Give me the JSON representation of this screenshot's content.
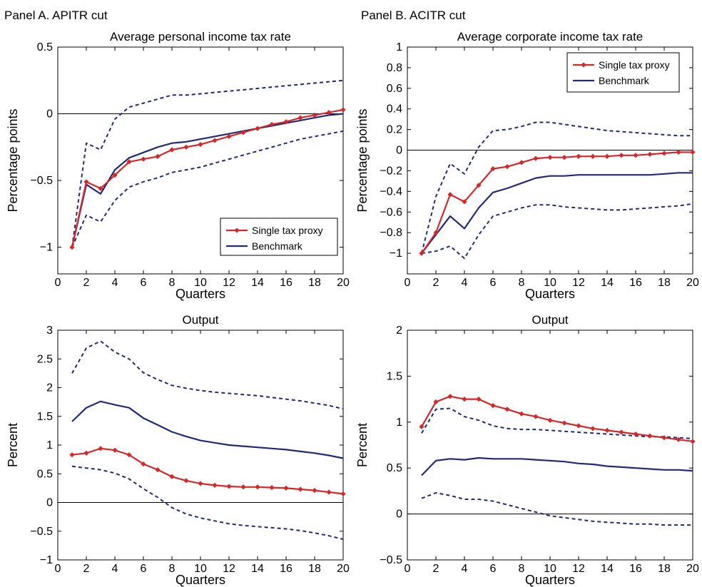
{
  "panels": {
    "left": "Panel A. APITR cut",
    "right": "Panel B. ACITR cut"
  },
  "colors": {
    "proxy": "#d62728",
    "benchmark": "#1f2a7a",
    "band": "#1f2a7a",
    "zero_line": "#000000"
  },
  "chart_data": [
    {
      "type": "line",
      "title": "Average personal income tax rate",
      "xlabel": "Quarters",
      "ylabel": "Percentage points",
      "xlim": [
        0,
        20
      ],
      "ylim": [
        -1.2,
        0.5
      ],
      "xticks": [
        0,
        2,
        4,
        6,
        8,
        10,
        12,
        14,
        16,
        18,
        20
      ],
      "xtick_labels": [
        "0",
        "2",
        "4",
        "6",
        "8",
        "10",
        "12",
        "14",
        "16",
        "18",
        "20"
      ],
      "yticks": [
        -1,
        -0.5,
        0,
        0.5
      ],
      "ytick_labels": [
        "−1",
        "−0.5",
        "0",
        "0.5"
      ],
      "legend_position": "bottom-right",
      "x": [
        1,
        2,
        3,
        4,
        5,
        6,
        7,
        8,
        9,
        10,
        11,
        12,
        13,
        14,
        15,
        16,
        17,
        18,
        19,
        20
      ],
      "series": [
        {
          "name": "Single tax proxy",
          "style": "proxy",
          "values": [
            -1,
            -0.51,
            -0.56,
            -0.46,
            -0.36,
            -0.34,
            -0.32,
            -0.27,
            -0.25,
            -0.23,
            -0.2,
            -0.17,
            -0.14,
            -0.11,
            -0.08,
            -0.06,
            -0.03,
            -0.01,
            0.01,
            0.03
          ]
        },
        {
          "name": "Benchmark",
          "style": "benchmark",
          "values": [
            -1,
            -0.53,
            -0.6,
            -0.42,
            -0.33,
            -0.29,
            -0.25,
            -0.22,
            -0.21,
            -0.19,
            -0.17,
            -0.15,
            -0.13,
            -0.11,
            -0.09,
            -0.07,
            -0.05,
            -0.03,
            -0.01,
            0
          ]
        },
        {
          "style": "band",
          "values": [
            -1,
            -0.22,
            -0.27,
            -0.04,
            0.05,
            0.08,
            0.11,
            0.14,
            0.14,
            0.15,
            0.16,
            0.17,
            0.18,
            0.19,
            0.2,
            0.21,
            0.22,
            0.23,
            0.24,
            0.25
          ]
        },
        {
          "style": "band",
          "values": [
            -1,
            -0.76,
            -0.81,
            -0.65,
            -0.55,
            -0.51,
            -0.48,
            -0.44,
            -0.42,
            -0.4,
            -0.37,
            -0.34,
            -0.31,
            -0.28,
            -0.25,
            -0.22,
            -0.19,
            -0.17,
            -0.15,
            -0.13
          ]
        }
      ]
    },
    {
      "type": "line",
      "title": "Average corporate income tax rate",
      "xlabel": "Quarters",
      "ylabel": "Percentage points",
      "xlim": [
        0,
        20
      ],
      "ylim": [
        -1.2,
        1
      ],
      "xticks": [
        0,
        2,
        4,
        6,
        8,
        10,
        12,
        14,
        16,
        18,
        20
      ],
      "xtick_labels": [
        "0",
        "2",
        "4",
        "6",
        "8",
        "10",
        "12",
        "14",
        "16",
        "18",
        "20"
      ],
      "yticks": [
        -1,
        -0.8,
        -0.6,
        -0.4,
        -0.2,
        0,
        0.2,
        0.4,
        0.6,
        0.8,
        1
      ],
      "ytick_labels": [
        "−1",
        "−0.8",
        "−0.6",
        "−0.4",
        "−0.2",
        "0",
        "0.2",
        "0.4",
        "0.6",
        "0.8",
        "1"
      ],
      "legend_position": "top-right",
      "x": [
        1,
        2,
        3,
        4,
        5,
        6,
        7,
        8,
        9,
        10,
        11,
        12,
        13,
        14,
        15,
        16,
        17,
        18,
        19,
        20
      ],
      "series": [
        {
          "name": "Single tax proxy",
          "style": "proxy",
          "values": [
            -1,
            -0.8,
            -0.43,
            -0.5,
            -0.34,
            -0.18,
            -0.16,
            -0.12,
            -0.08,
            -0.07,
            -0.07,
            -0.06,
            -0.06,
            -0.06,
            -0.05,
            -0.05,
            -0.04,
            -0.03,
            -0.02,
            -0.02
          ]
        },
        {
          "name": "Benchmark",
          "style": "benchmark",
          "values": [
            -1,
            -0.82,
            -0.64,
            -0.76,
            -0.56,
            -0.41,
            -0.37,
            -0.32,
            -0.27,
            -0.25,
            -0.25,
            -0.24,
            -0.24,
            -0.24,
            -0.24,
            -0.24,
            -0.24,
            -0.23,
            -0.22,
            -0.22
          ]
        },
        {
          "style": "band",
          "values": [
            -1,
            -0.45,
            -0.13,
            -0.23,
            0.03,
            0.19,
            0.2,
            0.23,
            0.27,
            0.27,
            0.25,
            0.23,
            0.21,
            0.19,
            0.18,
            0.17,
            0.16,
            0.15,
            0.14,
            0.14
          ]
        },
        {
          "style": "band",
          "values": [
            -1,
            -0.98,
            -0.93,
            -1.05,
            -0.82,
            -0.64,
            -0.6,
            -0.56,
            -0.53,
            -0.53,
            -0.55,
            -0.56,
            -0.57,
            -0.58,
            -0.58,
            -0.57,
            -0.56,
            -0.55,
            -0.54,
            -0.52
          ]
        }
      ]
    },
    {
      "type": "line",
      "title": "Output",
      "xlabel": "Quarters",
      "ylabel": "Percent",
      "xlim": [
        0,
        20
      ],
      "ylim": [
        -1,
        3
      ],
      "xticks": [
        0,
        2,
        4,
        6,
        8,
        10,
        12,
        14,
        16,
        18,
        20
      ],
      "xtick_labels": [
        "0",
        "2",
        "4",
        "6",
        "8",
        "10",
        "12",
        "14",
        "16",
        "18",
        "20"
      ],
      "yticks": [
        -1,
        -0.5,
        0,
        0.5,
        1,
        1.5,
        2,
        2.5,
        3
      ],
      "ytick_labels": [
        "−1",
        "−0.5",
        "0",
        "0.5",
        "1",
        "1.5",
        "2",
        "2.5",
        "3"
      ],
      "x": [
        1,
        2,
        3,
        4,
        5,
        6,
        7,
        8,
        9,
        10,
        11,
        12,
        13,
        14,
        15,
        16,
        17,
        18,
        19,
        20
      ],
      "series": [
        {
          "name": "Single tax proxy",
          "style": "proxy",
          "values": [
            0.83,
            0.86,
            0.94,
            0.91,
            0.83,
            0.67,
            0.57,
            0.45,
            0.38,
            0.33,
            0.3,
            0.28,
            0.27,
            0.27,
            0.26,
            0.25,
            0.23,
            0.21,
            0.18,
            0.15
          ]
        },
        {
          "name": "Benchmark",
          "style": "benchmark",
          "values": [
            1.41,
            1.65,
            1.76,
            1.7,
            1.65,
            1.47,
            1.35,
            1.23,
            1.15,
            1.08,
            1.04,
            1.0,
            0.98,
            0.96,
            0.94,
            0.92,
            0.89,
            0.86,
            0.82,
            0.77
          ]
        },
        {
          "style": "band",
          "values": [
            2.25,
            2.69,
            2.81,
            2.62,
            2.5,
            2.26,
            2.14,
            2.04,
            1.99,
            1.95,
            1.92,
            1.9,
            1.88,
            1.86,
            1.83,
            1.8,
            1.77,
            1.73,
            1.69,
            1.63
          ]
        },
        {
          "style": "band",
          "values": [
            0.63,
            0.6,
            0.57,
            0.51,
            0.41,
            0.24,
            0.09,
            -0.09,
            -0.2,
            -0.27,
            -0.32,
            -0.37,
            -0.4,
            -0.42,
            -0.44,
            -0.46,
            -0.49,
            -0.53,
            -0.58,
            -0.64
          ]
        }
      ]
    },
    {
      "type": "line",
      "title": "Output",
      "xlabel": "Quarters",
      "ylabel": "Percent",
      "xlim": [
        0,
        20
      ],
      "ylim": [
        -0.5,
        2
      ],
      "xticks": [
        0,
        2,
        4,
        6,
        8,
        10,
        12,
        14,
        16,
        18,
        20
      ],
      "xtick_labels": [
        "0",
        "2",
        "4",
        "6",
        "8",
        "10",
        "12",
        "14",
        "16",
        "18",
        "20"
      ],
      "yticks": [
        -0.5,
        0,
        0.5,
        1,
        1.5,
        2
      ],
      "ytick_labels": [
        "−0.5",
        "0",
        "0.5",
        "1",
        "1.5",
        "2"
      ],
      "x": [
        1,
        2,
        3,
        4,
        5,
        6,
        7,
        8,
        9,
        10,
        11,
        12,
        13,
        14,
        15,
        16,
        17,
        18,
        19,
        20
      ],
      "series": [
        {
          "name": "Single tax proxy",
          "style": "proxy",
          "values": [
            0.95,
            1.22,
            1.28,
            1.25,
            1.25,
            1.18,
            1.14,
            1.09,
            1.06,
            1.02,
            0.99,
            0.96,
            0.93,
            0.91,
            0.89,
            0.87,
            0.85,
            0.83,
            0.81,
            0.79
          ]
        },
        {
          "name": "Benchmark",
          "style": "benchmark",
          "values": [
            0.42,
            0.58,
            0.6,
            0.59,
            0.61,
            0.6,
            0.6,
            0.6,
            0.59,
            0.58,
            0.57,
            0.55,
            0.54,
            0.52,
            0.51,
            0.5,
            0.49,
            0.48,
            0.48,
            0.47
          ]
        },
        {
          "style": "band",
          "values": [
            0.88,
            1.14,
            1.15,
            1.06,
            1.02,
            0.96,
            0.93,
            0.92,
            0.92,
            0.91,
            0.9,
            0.89,
            0.88,
            0.87,
            0.86,
            0.85,
            0.84,
            0.84,
            0.83,
            0.82
          ]
        },
        {
          "style": "band",
          "values": [
            0.17,
            0.23,
            0.2,
            0.16,
            0.16,
            0.14,
            0.1,
            0.06,
            0.02,
            -0.02,
            -0.04,
            -0.06,
            -0.08,
            -0.09,
            -0.1,
            -0.11,
            -0.11,
            -0.12,
            -0.12,
            -0.12
          ]
        }
      ]
    }
  ]
}
